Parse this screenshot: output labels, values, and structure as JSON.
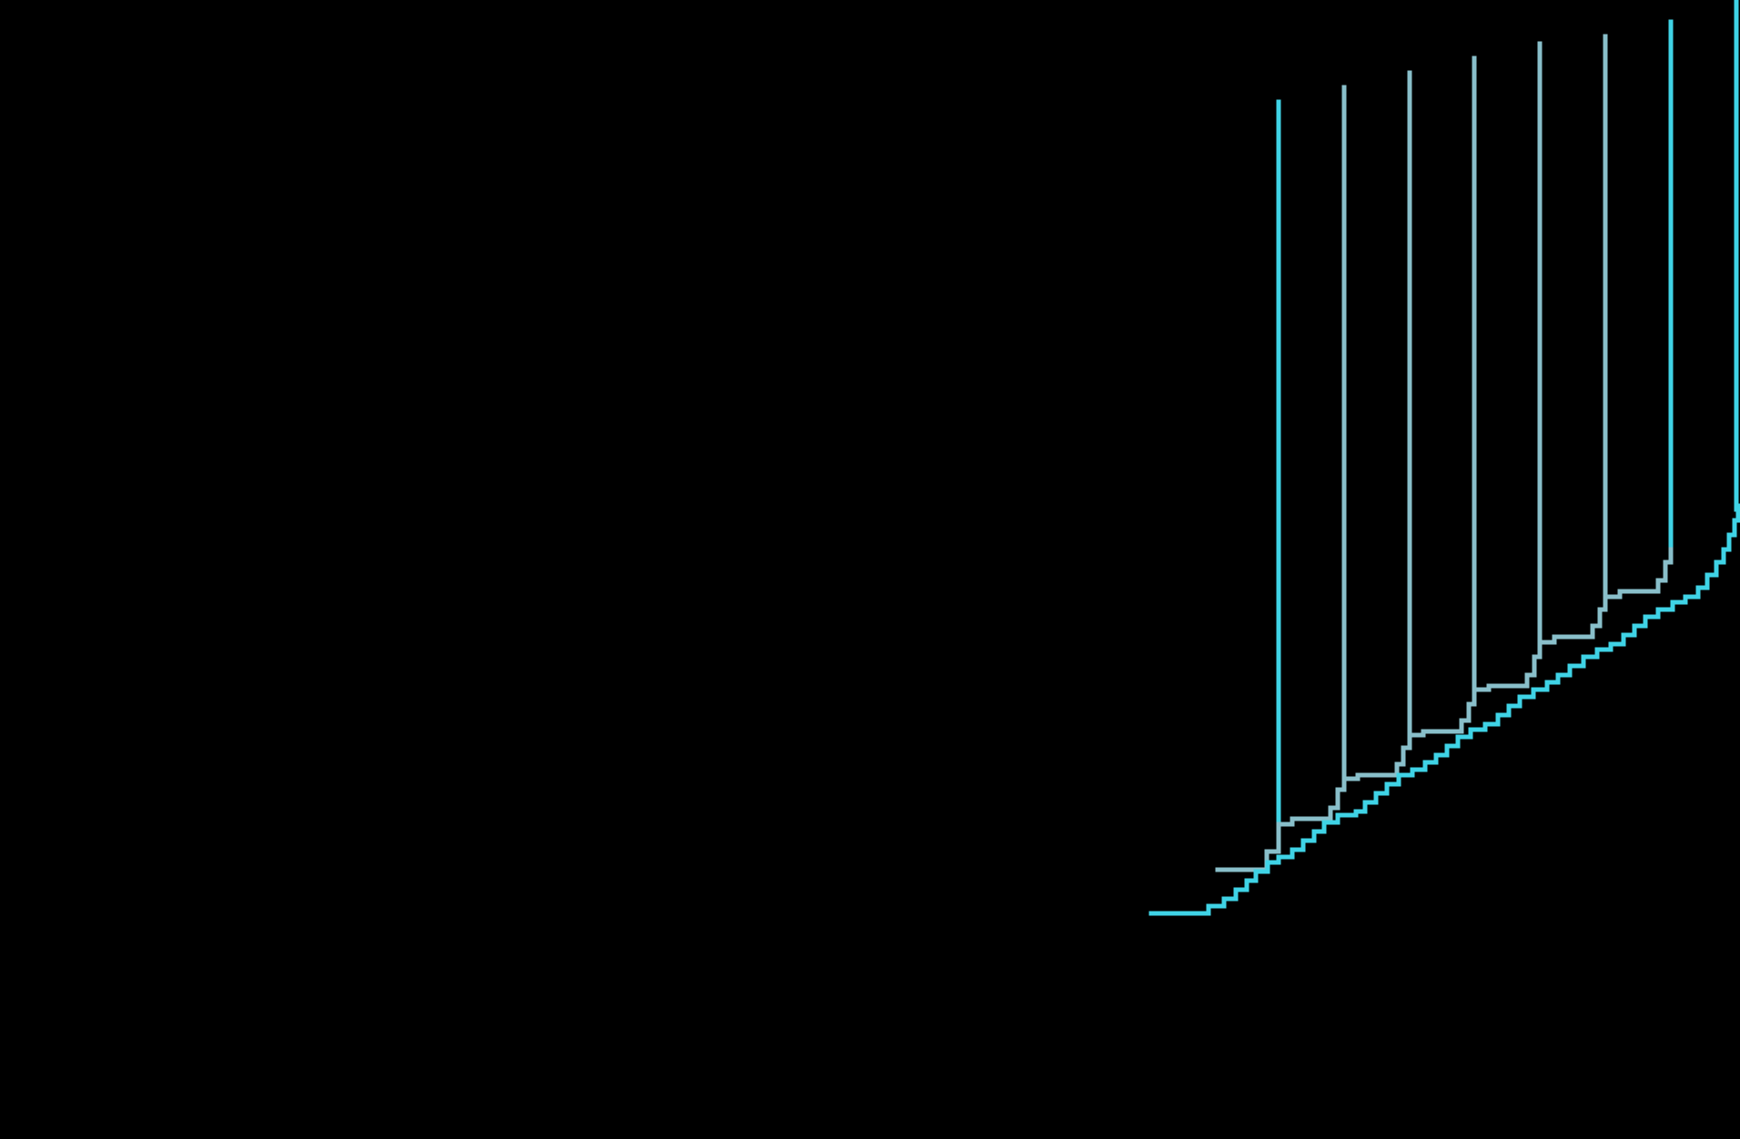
{
  "scene": {
    "description_colors": {
      "background": "#000000",
      "primary_line": "#3fd3e6",
      "secondary_line": "#89bfca"
    }
  }
}
